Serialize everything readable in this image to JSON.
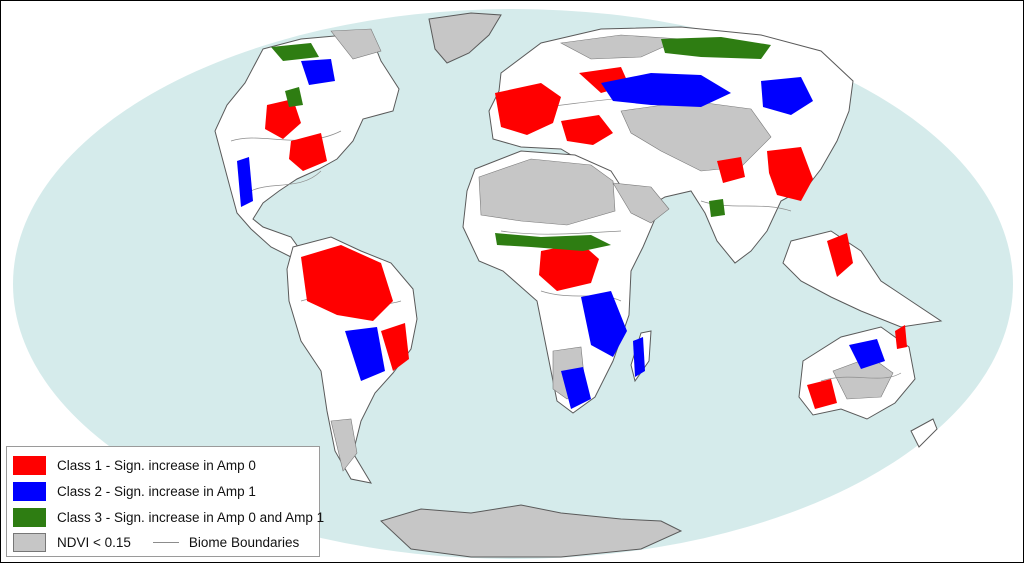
{
  "colors": {
    "ocean": "#d5ebeb",
    "land": "#ffffff",
    "ndvi_low": "#c6c6c6",
    "coast": "#5a5a5a",
    "class1": "#ff0000",
    "class2": "#0000ff",
    "class3": "#2e7d12",
    "biome_line": "#8c8c8c"
  },
  "legend": {
    "class1": "Class 1 - Sign. increase in Amp 0",
    "class2": "Class 2 - Sign. increase in Amp 1",
    "class3": "Class 3 - Sign. increase in Amp 0 and Amp 1",
    "ndvi": "NDVI < 0.15",
    "biome": "Biome Boundaries"
  }
}
